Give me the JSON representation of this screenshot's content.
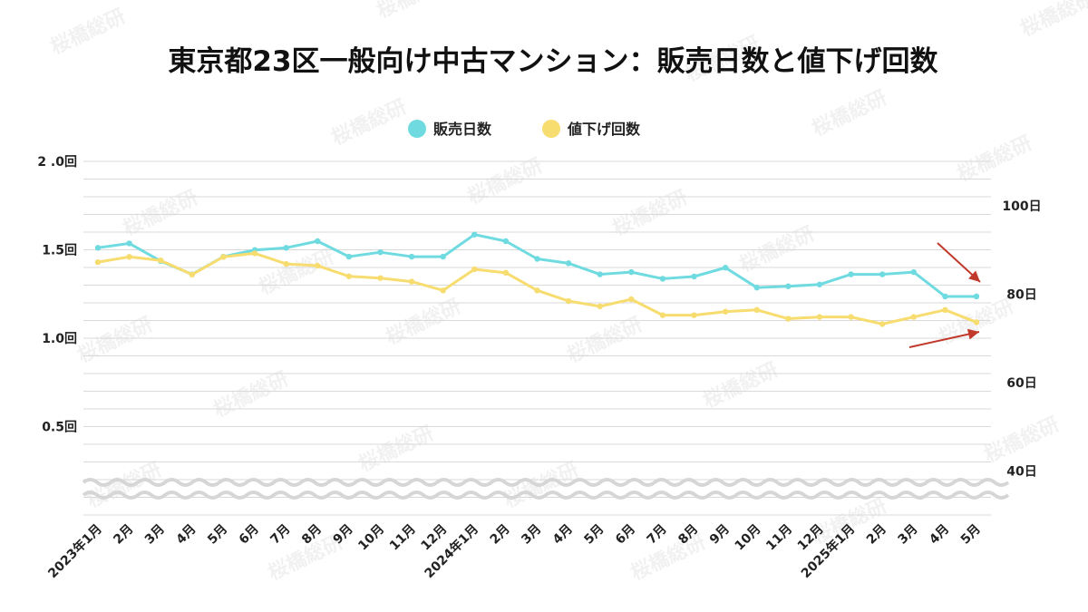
{
  "title": "東京都23区一般向け中古マンション：販売日数と値下げ回数",
  "watermark_text": "桜橋総研",
  "colors": {
    "days": "#6fdbe0",
    "price_cuts": "#f7dc6f",
    "arrow": "#c0392b",
    "grid": "#d9d9d9",
    "wave": "#d6d6d6"
  },
  "chart_data": {
    "type": "line",
    "title": "東京都23区一般向け中古マンション：販売日数と値下げ回数",
    "categories": [
      "2023年1月",
      "2月",
      "3月",
      "4月",
      "5月",
      "6月",
      "7月",
      "8月",
      "9月",
      "10月",
      "11月",
      "12月",
      "2024年1月",
      "2月",
      "3月",
      "4月",
      "5月",
      "6月",
      "7月",
      "8月",
      "9月",
      "10月",
      "11月",
      "12月",
      "2025年1月",
      "2月",
      "3月",
      "4月",
      "5月"
    ],
    "left_axis": {
      "ticks": [
        {
          "value": 2.0,
          "label": "2 .0回"
        },
        {
          "value": 1.5,
          "label": "1.5回"
        },
        {
          "value": 1.0,
          "label": "1.0回"
        },
        {
          "value": 0.5,
          "label": "0.5回"
        }
      ],
      "range": [
        0.0,
        2.0
      ]
    },
    "right_axis": {
      "ticks": [
        {
          "value": 100,
          "label": "100日"
        },
        {
          "value": 80,
          "label": "80日"
        },
        {
          "value": 60,
          "label": "60日"
        },
        {
          "value": 40,
          "label": "40日"
        }
      ],
      "range": [
        36.7,
        110
      ]
    },
    "axis_break": true,
    "grid": true,
    "legend_position": "top-center",
    "series": [
      {
        "name": "販売日数",
        "axis": "right",
        "color": "#6fdbe0",
        "values": [
          90.5,
          91.5,
          87.5,
          84.5,
          88.5,
          90,
          90.5,
          92,
          88.5,
          89.5,
          88.5,
          88.5,
          93.5,
          92,
          88,
          87,
          84.5,
          85,
          83.5,
          84,
          86,
          81.5,
          81.8,
          82.2,
          84.5,
          84.5,
          85,
          79.5,
          79.5
        ]
      },
      {
        "name": "値下げ回数",
        "axis": "left",
        "color": "#f7dc6f",
        "values": [
          1.43,
          1.46,
          1.44,
          1.36,
          1.46,
          1.48,
          1.42,
          1.41,
          1.35,
          1.34,
          1.32,
          1.27,
          1.39,
          1.37,
          1.27,
          1.21,
          1.18,
          1.22,
          1.13,
          1.13,
          1.15,
          1.16,
          1.11,
          1.12,
          1.12,
          1.08,
          1.12,
          1.16,
          1.09
        ]
      }
    ]
  }
}
